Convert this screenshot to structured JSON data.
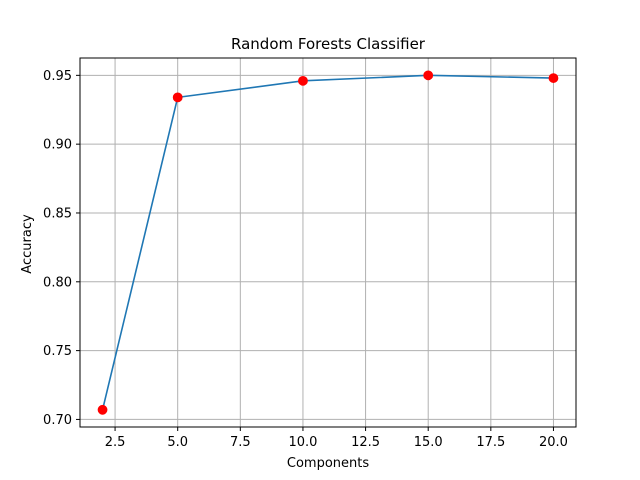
{
  "chart_data": {
    "type": "line",
    "title": "Random Forests Classifier",
    "xlabel": "Components",
    "ylabel": "Accuracy",
    "x": [
      2,
      5,
      10,
      15,
      20
    ],
    "series": [
      {
        "values": [
          0.707,
          0.934,
          0.946,
          0.95,
          0.948
        ]
      }
    ],
    "xlim": [
      1.1,
      20.9
    ],
    "ylim": [
      0.6945,
      0.9626
    ],
    "xticks": [
      2.5,
      5.0,
      7.5,
      10.0,
      12.5,
      15.0,
      17.5,
      20.0
    ],
    "xtick_labels": [
      "2.5",
      "5.0",
      "7.5",
      "10.0",
      "12.5",
      "15.0",
      "17.5",
      "20.0"
    ],
    "yticks": [
      0.7,
      0.75,
      0.8,
      0.85,
      0.9,
      0.95
    ],
    "ytick_labels": [
      "0.70",
      "0.75",
      "0.80",
      "0.85",
      "0.90",
      "0.95"
    ],
    "grid": true,
    "colors": {
      "line": "#1f77b4",
      "markers": "#ff0000"
    }
  }
}
